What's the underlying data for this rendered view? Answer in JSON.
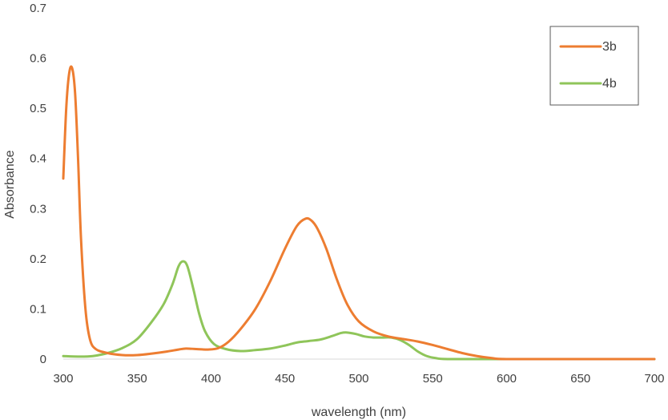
{
  "chart_data": {
    "type": "line",
    "title": "",
    "xlabel": "wavelength (nm)",
    "ylabel": "Absorbance",
    "xlim": [
      300,
      700
    ],
    "ylim": [
      0,
      0.7
    ],
    "x_ticks": [
      300,
      350,
      400,
      450,
      500,
      550,
      600,
      650,
      700
    ],
    "x_tick_labels": [
      "300",
      "350",
      "400",
      "450",
      "500",
      "550",
      "600",
      "650",
      "700"
    ],
    "y_ticks": [
      0,
      0.1,
      0.2,
      0.3,
      0.4,
      0.5,
      0.6,
      0.7
    ],
    "y_tick_labels": [
      "0",
      "0.1",
      "0.2",
      "0.3",
      "0.4",
      "0.5",
      "0.6",
      "0.7"
    ],
    "grid": false,
    "legend_position": "top-right",
    "series": [
      {
        "name": "3b",
        "color": "#ED7D31",
        "points": [
          [
            300,
            0.36
          ],
          [
            302,
            0.5
          ],
          [
            304,
            0.57
          ],
          [
            306,
            0.58
          ],
          [
            308,
            0.53
          ],
          [
            310,
            0.4
          ],
          [
            312,
            0.24
          ],
          [
            315,
            0.1
          ],
          [
            318,
            0.04
          ],
          [
            322,
            0.02
          ],
          [
            330,
            0.012
          ],
          [
            340,
            0.008
          ],
          [
            350,
            0.008
          ],
          [
            360,
            0.011
          ],
          [
            370,
            0.015
          ],
          [
            378,
            0.019
          ],
          [
            383,
            0.021
          ],
          [
            390,
            0.02
          ],
          [
            398,
            0.019
          ],
          [
            405,
            0.022
          ],
          [
            412,
            0.035
          ],
          [
            420,
            0.06
          ],
          [
            430,
            0.1
          ],
          [
            440,
            0.155
          ],
          [
            450,
            0.22
          ],
          [
            458,
            0.265
          ],
          [
            464,
            0.28
          ],
          [
            468,
            0.276
          ],
          [
            472,
            0.26
          ],
          [
            478,
            0.22
          ],
          [
            485,
            0.16
          ],
          [
            492,
            0.11
          ],
          [
            500,
            0.075
          ],
          [
            510,
            0.055
          ],
          [
            520,
            0.045
          ],
          [
            530,
            0.04
          ],
          [
            540,
            0.035
          ],
          [
            550,
            0.028
          ],
          [
            560,
            0.02
          ],
          [
            570,
            0.012
          ],
          [
            580,
            0.006
          ],
          [
            590,
            0.002
          ],
          [
            600,
            0.0
          ],
          [
            650,
            0.0
          ],
          [
            700,
            0.0
          ]
        ]
      },
      {
        "name": "4b",
        "color": "#8FC55A",
        "points": [
          [
            300,
            0.006
          ],
          [
            310,
            0.005
          ],
          [
            320,
            0.006
          ],
          [
            330,
            0.012
          ],
          [
            340,
            0.022
          ],
          [
            350,
            0.04
          ],
          [
            360,
            0.075
          ],
          [
            368,
            0.11
          ],
          [
            374,
            0.15
          ],
          [
            378,
            0.185
          ],
          [
            381,
            0.195
          ],
          [
            384,
            0.185
          ],
          [
            388,
            0.14
          ],
          [
            392,
            0.09
          ],
          [
            396,
            0.055
          ],
          [
            402,
            0.03
          ],
          [
            410,
            0.02
          ],
          [
            420,
            0.016
          ],
          [
            430,
            0.018
          ],
          [
            440,
            0.021
          ],
          [
            450,
            0.027
          ],
          [
            458,
            0.033
          ],
          [
            466,
            0.036
          ],
          [
            474,
            0.039
          ],
          [
            482,
            0.046
          ],
          [
            488,
            0.052
          ],
          [
            492,
            0.053
          ],
          [
            498,
            0.05
          ],
          [
            504,
            0.045
          ],
          [
            510,
            0.043
          ],
          [
            516,
            0.043
          ],
          [
            522,
            0.043
          ],
          [
            528,
            0.038
          ],
          [
            534,
            0.028
          ],
          [
            540,
            0.015
          ],
          [
            546,
            0.006
          ],
          [
            552,
            0.002
          ],
          [
            560,
            0.0
          ],
          [
            600,
            0.0
          ],
          [
            700,
            0.0
          ]
        ]
      }
    ]
  }
}
